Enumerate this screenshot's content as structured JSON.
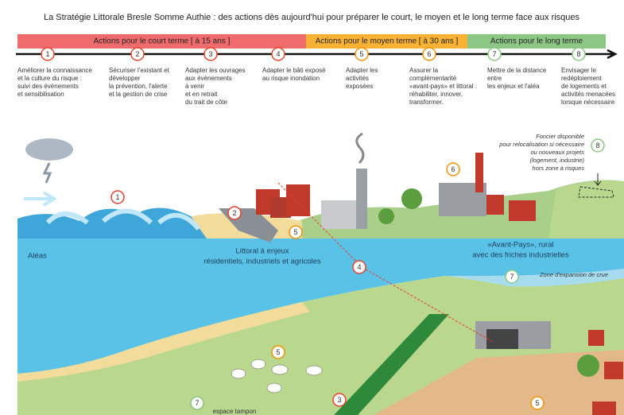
{
  "header": {
    "title": "La Stratégie Littorale Bresle Somme Authie : des actions dès aujourd'hui pour préparer le court, le moyen et le long terme face aux risques"
  },
  "timeline": {
    "phases": [
      {
        "label": "Actions pour le  court terme [ à 15 ans ]",
        "color": "#f06c6c"
      },
      {
        "label": "Actions pour le moyen terme [ à 30 ans ]",
        "color": "#f9b233"
      },
      {
        "label": "Actions pour le  long terme",
        "color": "#8cc785"
      }
    ]
  },
  "actions": [
    {
      "number": "1",
      "color": "#e8412c",
      "lines": [
        "Améliorer la connaissance",
        "et la culture du risque :",
        "suivi des  événements",
        "et sensibilisation"
      ]
    },
    {
      "number": "2",
      "color": "#e8412c",
      "lines": [
        "Sécuriser l'existant et",
        "développer",
        "la prévention, l'alerte",
        "et la gestion de crise"
      ]
    },
    {
      "number": "3",
      "color": "#e8412c",
      "lines": [
        "Adapter les ouvrages",
        "aux évènements",
        " à venir",
        "et en retrait",
        "du trait de côte"
      ]
    },
    {
      "number": "4",
      "color": "#e8412c",
      "lines": [
        "Adapter le bâti exposé",
        "au risque inondation"
      ]
    },
    {
      "number": "5",
      "color": "#f39200",
      "lines": [
        "Adapter  les",
        "activités",
        "exposées"
      ]
    },
    {
      "number": "6",
      "color": "#f39200",
      "lines": [
        "Assurer la",
        "complémentarité",
        "«avant-pays» et littoral :",
        "réhabiliter, innover,",
        "transformer."
      ]
    },
    {
      "number": "7",
      "color": "#8cc785",
      "text_color": "#222",
      "lines": [
        "Mettre de la distance",
        "entre",
        "les enjeux et l'aléa"
      ]
    },
    {
      "number": "8",
      "color": "#8cc785",
      "text_color": "#222",
      "lines": [
        "Envisager le",
        "redéploiement",
        "de logements et",
        "activités menacées",
        "lorsque nécessaire"
      ]
    }
  ],
  "scene": {
    "labels": {
      "hazards": "Aléas",
      "coast": [
        "Littoral à enjeux",
        "résidentiels, industriels et agricoles"
      ],
      "hinterland": [
        "«Avant-Pays», rural",
        "avec des friches industrielles"
      ],
      "flood_zone": "Zone d'expansion de crue",
      "buffer": "espace tampon",
      "land": [
        "Foncier disponible",
        "pour relocalisation si nécessaire",
        "ou nouveaux projets",
        "(logement, industrie)",
        "hors zone à risques"
      ]
    },
    "markers": [
      {
        "number": "1",
        "color": "#e8412c"
      },
      {
        "number": "2",
        "color": "#e8412c"
      },
      {
        "number": "5",
        "color": "#f39200"
      },
      {
        "number": "4",
        "color": "#e8412c"
      },
      {
        "number": "6",
        "color": "#f39200"
      },
      {
        "number": "8",
        "color": "#8cc785"
      },
      {
        "number": "7",
        "color": "#8cc785"
      },
      {
        "number": "5",
        "color": "#f39200"
      },
      {
        "number": "3",
        "color": "#e8412c"
      },
      {
        "number": "7",
        "color": "#8cc785"
      },
      {
        "number": "5",
        "color": "#f39200"
      }
    ]
  }
}
